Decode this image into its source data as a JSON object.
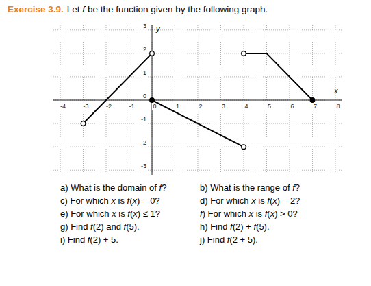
{
  "exercise": {
    "label": "Exercise 3.9.",
    "statement": "Let f be the function given by the following graph.",
    "questions": [
      "a) What is the domain of f?",
      "b) What is the range of f?",
      "c) For which x is f(x) = 0?",
      "d) For which x is f(x) = 2?",
      "e) For which x is f(x) ≤ 1?",
      "f) For which x is f(x) > 0?",
      "g) Find f(2) and f(5).",
      "h) Find f(2) + f(5).",
      "i) Find f(2) + 5.",
      "j) Find f(2 + 5)."
    ]
  },
  "chart_data": {
    "type": "line",
    "x_label": "x",
    "y_label": "y",
    "xlim": [
      -4.3,
      8.3
    ],
    "ylim": [
      -3.2,
      3.2
    ],
    "xticks": [
      -4,
      -3,
      -2,
      -1,
      0,
      1,
      2,
      3,
      4,
      5,
      6,
      7,
      8
    ],
    "yticks": [
      -3,
      -2,
      -1,
      0,
      1,
      2,
      3
    ],
    "grid": true,
    "color": "#000000",
    "series": [
      {
        "type": "line",
        "line_style": "solid",
        "x": [
          -3,
          0
        ],
        "values": [
          -1,
          2
        ]
      },
      {
        "type": "line",
        "line_style": "solid",
        "x": [
          0,
          4
        ],
        "values": [
          0,
          -2
        ]
      },
      {
        "type": "line",
        "line_style": "solid",
        "x": [
          4,
          5,
          7
        ],
        "values": [
          2,
          2,
          0
        ]
      },
      {
        "type": "scatter",
        "marker": "open",
        "x": [
          -3,
          0,
          4,
          4
        ],
        "values": [
          -1,
          2,
          -2,
          2
        ]
      },
      {
        "type": "scatter",
        "marker": "filled",
        "x": [
          0,
          7
        ],
        "values": [
          0,
          0
        ]
      }
    ]
  }
}
